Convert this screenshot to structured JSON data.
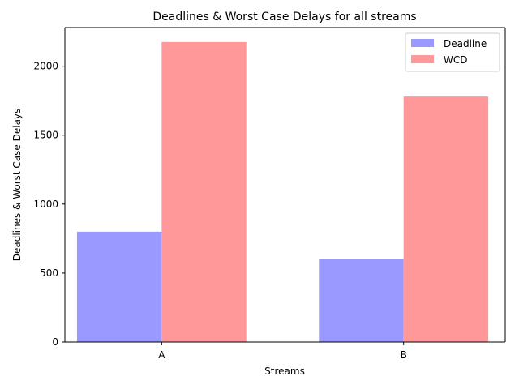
{
  "chart_data": {
    "type": "bar",
    "title": "Deadlines & Worst Case Delays for all streams",
    "xlabel": "Streams",
    "ylabel": "Deadlines & Worst Case Delays",
    "categories": [
      "A",
      "B"
    ],
    "series": [
      {
        "name": "Deadline",
        "values": [
          800,
          600
        ],
        "color": "#9999ff"
      },
      {
        "name": "WCD",
        "values": [
          2175,
          1780
        ],
        "color": "#ff9999"
      }
    ],
    "ylim": [
      0,
      2280
    ],
    "yticks": [
      0,
      500,
      1000,
      1500,
      2000
    ],
    "grid": false,
    "legend_position": "top-right"
  }
}
